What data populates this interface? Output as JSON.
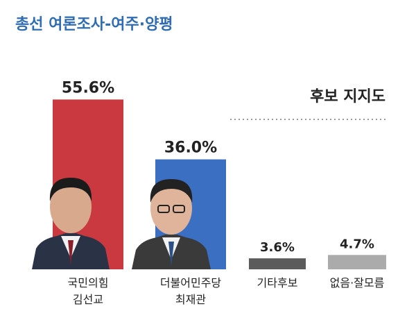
{
  "chart_data": {
    "type": "bar",
    "title": "총선 여론조사-여주·양평",
    "subtitle": "후보 지지도",
    "categories": [
      "국민의힘\n김선교",
      "더불어민주당\n최재관",
      "기타후보",
      "없음·잘모름"
    ],
    "values": [
      55.6,
      36.0,
      3.6,
      4.7
    ],
    "value_labels": [
      "55.6%",
      "36.0%",
      "3.6%",
      "4.7%"
    ],
    "colors": [
      "#c9393f",
      "#3b6fc2",
      "#5b5b5b",
      "#ababab"
    ],
    "ylim": [
      0,
      60
    ]
  }
}
